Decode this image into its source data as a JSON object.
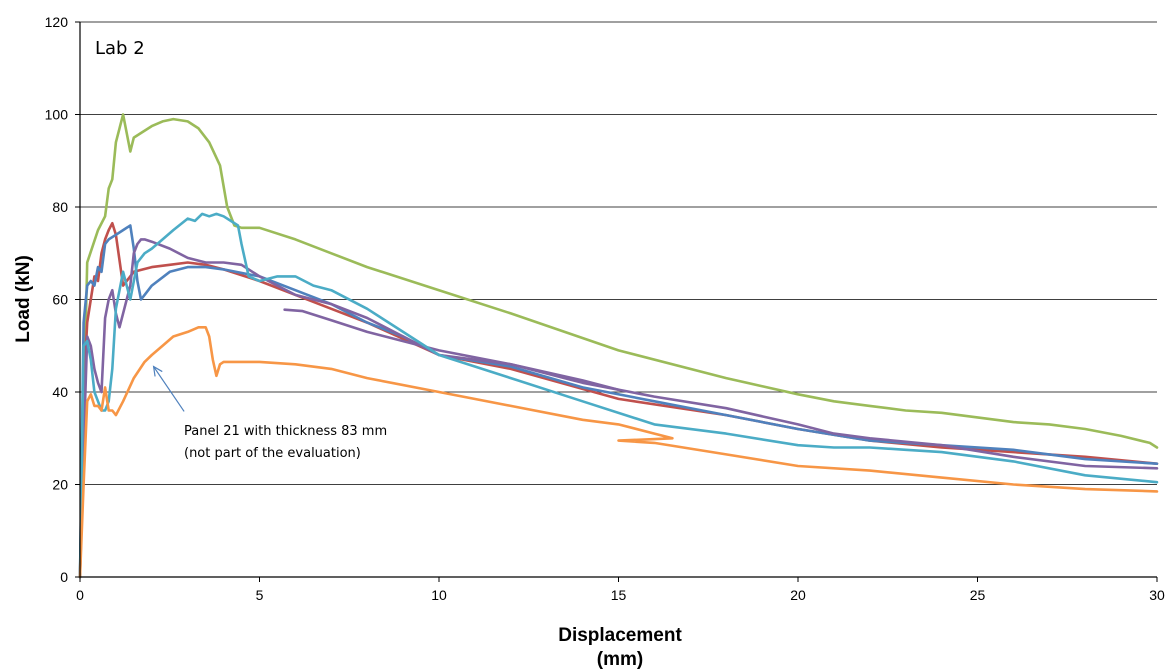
{
  "chart_data": {
    "type": "line",
    "inset_label": "Lab 2",
    "xlabel_line1": "Displacement",
    "xlabel_line2": "(mm)",
    "ylabel": "Load (kN)",
    "xlim": [
      0,
      30
    ],
    "ylim": [
      0,
      120
    ],
    "xticks": [
      0,
      5,
      10,
      15,
      20,
      25,
      30
    ],
    "yticks": [
      0,
      20,
      40,
      60,
      80,
      100,
      120
    ],
    "grid": "horizontal",
    "annotation": {
      "line1": "Panel 21 with thickness 83 mm",
      "line2": "(not part of the evaluation)",
      "arrow_to": [
        2.05,
        45.5
      ],
      "arrow_from": [
        2.9,
        35.8
      ]
    },
    "series": [
      {
        "color": "#9BBB59",
        "x": [
          0,
          0.2,
          0.5,
          0.7,
          0.8,
          0.9,
          1.0,
          1.1,
          1.2,
          1.3,
          1.4,
          1.5,
          1.7,
          2.0,
          2.3,
          2.6,
          3.0,
          3.3,
          3.6,
          3.9,
          4.1,
          4.3,
          4.5,
          5.0,
          6.0,
          7.0,
          8.0,
          10.0,
          12.0,
          15.0,
          18.0,
          20.0,
          21.0,
          22.0,
          23.0,
          24.0,
          25.0,
          26.0,
          27.0,
          28.0,
          29.0,
          29.8,
          30.0
        ],
        "y": [
          0,
          68,
          75,
          78,
          84,
          86,
          94,
          97,
          100,
          96,
          92,
          95,
          96,
          97.5,
          98.5,
          99,
          98.5,
          97,
          94,
          89,
          80,
          76,
          75.5,
          75.5,
          73,
          70,
          67,
          62,
          57,
          49,
          43,
          39.5,
          38,
          37,
          36,
          35.5,
          34.5,
          33.5,
          33,
          32,
          30.5,
          29,
          28
        ]
      },
      {
        "color": "#C0504D",
        "x": [
          0,
          0.1,
          0.2,
          0.3,
          0.4,
          0.5,
          0.6,
          0.7,
          0.8,
          0.9,
          1.0,
          1.2,
          1.5,
          2.0,
          2.5,
          3.0,
          3.5,
          4.0,
          5.0,
          6.0,
          7.0,
          8.0,
          10.0,
          12.0,
          15.0,
          18.0,
          20.0,
          22.0,
          24.0,
          26.0,
          28.0,
          30.0
        ],
        "y": [
          0,
          40,
          55,
          60,
          65,
          64,
          70,
          73,
          75,
          76.5,
          74,
          63,
          66,
          67,
          67.5,
          68,
          67.5,
          66.5,
          64,
          61,
          58,
          55,
          48,
          45,
          38.5,
          35,
          32,
          29.5,
          28,
          27,
          26,
          24.5
        ]
      },
      {
        "color": "#4F81BD",
        "x": [
          0,
          0.1,
          0.2,
          0.3,
          0.4,
          0.5,
          0.6,
          0.7,
          0.8,
          1.0,
          1.2,
          1.4,
          1.5,
          1.6,
          1.7,
          1.8,
          2.0,
          2.5,
          3.0,
          3.5,
          4.0,
          5.0,
          6.0,
          7.0,
          8.0,
          9.0,
          10.0,
          12.0,
          14.0,
          16.0,
          18.0,
          20.0,
          22.0,
          24.0,
          26.0,
          28.0,
          30.0
        ],
        "y": [
          0,
          55,
          63,
          64,
          63,
          67,
          66,
          72,
          73,
          74,
          75,
          76,
          71,
          64,
          60,
          61,
          63,
          66,
          67,
          67,
          66.5,
          65,
          62,
          59,
          55,
          52,
          48,
          45.5,
          41,
          38,
          35,
          32,
          29.5,
          28.5,
          27.5,
          25.5,
          24.5
        ]
      },
      {
        "color": "#8064A2",
        "x": [
          0,
          0.1,
          0.2,
          0.3,
          0.4,
          0.5,
          0.6,
          0.7,
          0.8,
          0.9,
          1.0,
          1.1,
          1.2,
          1.3,
          1.4,
          1.5,
          1.6,
          1.7,
          1.8,
          2.0,
          2.5,
          3.0,
          3.5,
          4.0,
          4.5,
          5.0,
          5.5,
          6.0,
          7.0,
          8.0,
          10.0,
          12.0,
          14.0,
          16.0,
          18.0,
          20.0,
          21.0,
          22.0,
          24.0,
          26.0,
          28.0,
          30.0
        ],
        "y": [
          0,
          28,
          52,
          50,
          45,
          42,
          40,
          56,
          60,
          62,
          57,
          54,
          57,
          60,
          63,
          70,
          72,
          73,
          73,
          72.5,
          71,
          69,
          68,
          68,
          67.5,
          65,
          63,
          61,
          59,
          56,
          48,
          46,
          42,
          39,
          36.5,
          33,
          31,
          30,
          28.5,
          26,
          24,
          23.5
        ]
      },
      {
        "color": "#8064A2",
        "x": [
          5.7,
          6.2,
          7.0,
          8.0,
          9.0,
          10.0,
          12.0,
          14.0,
          15.0
        ],
        "y": [
          57.8,
          57.5,
          55.5,
          53,
          51,
          49,
          46,
          42.5,
          40.5
        ]
      },
      {
        "color": "#4BACC6",
        "x": [
          0,
          0.1,
          0.2,
          0.3,
          0.4,
          0.5,
          0.6,
          0.7,
          0.8,
          0.9,
          1.0,
          1.2,
          1.4,
          1.6,
          1.8,
          2.0,
          2.3,
          2.6,
          3.0,
          3.2,
          3.4,
          3.6,
          3.8,
          4.0,
          4.2,
          4.4,
          4.5,
          4.7,
          5.0,
          5.5,
          6.0,
          6.5,
          7.0,
          8.0,
          9.0,
          10.0,
          12.0,
          14.0,
          16.0,
          18.0,
          20.0,
          21.0,
          22.0,
          23.0,
          24.0,
          26.0,
          28.0,
          30.0
        ],
        "y": [
          0,
          50,
          51,
          47,
          40,
          38,
          36,
          36,
          38,
          45,
          58,
          66,
          60,
          68,
          70,
          71,
          73,
          75,
          77.5,
          77,
          78.5,
          78,
          78.5,
          78,
          77,
          76,
          72,
          65,
          64,
          65,
          65,
          63,
          62,
          58,
          53,
          48,
          43,
          38,
          33,
          31,
          28.5,
          28,
          28,
          27.5,
          27,
          25,
          22,
          20.5
        ]
      },
      {
        "color": "#F79646",
        "x": [
          0,
          0.1,
          0.2,
          0.3,
          0.4,
          0.5,
          0.6,
          0.7,
          0.8,
          0.9,
          1.0,
          1.2,
          1.5,
          1.8,
          2.0,
          2.3,
          2.6,
          3.0,
          3.3,
          3.5,
          3.6,
          3.7,
          3.8,
          3.9,
          4.0,
          4.5,
          5.0,
          6.0,
          7.0,
          8.0,
          10.0,
          12.0,
          14.0,
          15.0,
          16.0,
          16.5,
          15.0,
          16.0,
          18.0,
          20.0,
          22.0,
          24.0,
          26.0,
          28.0,
          30.0
        ],
        "y": [
          0,
          20,
          38,
          39.5,
          37,
          37,
          36,
          41,
          36,
          36,
          35,
          38,
          43,
          46.5,
          48,
          50,
          52,
          53,
          54,
          54,
          52,
          47,
          43.5,
          46,
          46.5,
          46.5,
          46.5,
          46,
          45,
          43,
          40,
          37,
          34,
          33,
          31,
          30,
          29.5,
          29,
          26.5,
          24,
          23,
          21.5,
          20,
          19,
          18.5
        ]
      }
    ]
  }
}
